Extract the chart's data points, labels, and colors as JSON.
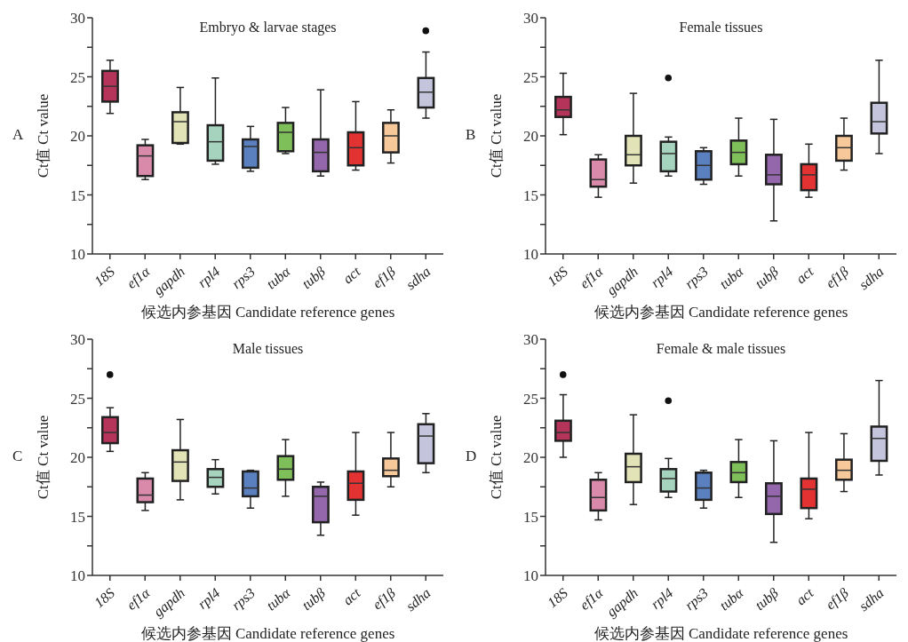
{
  "chart_data": [
    {
      "type": "box",
      "title": "Embryo & larvae stages",
      "xlabel": "候选内参基因 Candidate reference genes",
      "ylabel": "Ct值 Ct value",
      "annotations": [
        "A"
      ],
      "categories": [
        "18S",
        "ef1α",
        "gapdh",
        "rpl4",
        "rps3",
        "tubα",
        "tubβ",
        "act",
        "ef1β",
        "sdha"
      ],
      "colors": [
        "#b5355a",
        "#d98aaa",
        "#e2e4b8",
        "#a5d3bd",
        "#5a80c0",
        "#7fbf5a",
        "#9466ab",
        "#e23232",
        "#f7c99a",
        "#c4c4dc"
      ],
      "ylim": [
        10,
        30
      ],
      "yticks": [
        10,
        {
          "value": 12.5,
          "label": null
        },
        15,
        {
          "value": 17.5,
          "label": null
        },
        20,
        {
          "value": 22.5,
          "label": null
        },
        25,
        {
          "value": 27.5,
          "label": null
        },
        30
      ],
      "boxes": [
        {
          "low": 21.9,
          "q1": 22.9,
          "median": 24.2,
          "q3": 25.5,
          "high": 26.4
        },
        {
          "low": 16.3,
          "q1": 16.6,
          "median": 18.3,
          "q3": 19.2,
          "high": 19.7
        },
        {
          "low": 19.3,
          "q1": 19.4,
          "median": 21.2,
          "q3": 22.0,
          "high": 24.1
        },
        {
          "low": 17.6,
          "q1": 17.9,
          "median": 19.5,
          "q3": 20.9,
          "high": 24.9
        },
        {
          "low": 17.0,
          "q1": 17.3,
          "median": 19.1,
          "q3": 19.7,
          "high": 20.8
        },
        {
          "low": 18.5,
          "q1": 18.7,
          "median": 20.3,
          "q3": 21.1,
          "high": 22.4
        },
        {
          "low": 16.6,
          "q1": 17.0,
          "median": 18.6,
          "q3": 19.7,
          "high": 23.9
        },
        {
          "low": 17.1,
          "q1": 17.5,
          "median": 19.0,
          "q3": 20.3,
          "high": 22.9
        },
        {
          "low": 17.7,
          "q1": 18.6,
          "median": 20.0,
          "q3": 21.1,
          "high": 22.2
        },
        {
          "low": 21.5,
          "q1": 22.4,
          "median": 23.7,
          "q3": 24.9,
          "high": 27.1,
          "outliers": [
            28.9
          ]
        }
      ]
    },
    {
      "type": "box",
      "title": "Female tissues",
      "xlabel": "候选内参基因 Candidate reference genes",
      "ylabel": "Ct值 Ct value",
      "annotations": [
        "B"
      ],
      "categories": [
        "18S",
        "ef1α",
        "gapdh",
        "rpl4",
        "rps3",
        "tubα",
        "tubβ",
        "act",
        "ef1β",
        "sdha"
      ],
      "colors": [
        "#b5355a",
        "#d98aaa",
        "#e2e4b8",
        "#a5d3bd",
        "#5a80c0",
        "#7fbf5a",
        "#9466ab",
        "#e23232",
        "#f7c99a",
        "#c4c4dc"
      ],
      "ylim": [
        10,
        30
      ],
      "yticks": [
        10,
        {
          "value": 12.5,
          "label": null
        },
        15,
        {
          "value": 17.5,
          "label": null
        },
        20,
        {
          "value": 22.5,
          "label": null
        },
        25,
        {
          "value": 27.5,
          "label": null
        },
        30
      ],
      "boxes": [
        {
          "low": 20.1,
          "q1": 21.6,
          "median": 22.2,
          "q3": 23.3,
          "high": 25.3
        },
        {
          "low": 14.8,
          "q1": 15.7,
          "median": 16.3,
          "q3": 18.0,
          "high": 18.4
        },
        {
          "low": 16.0,
          "q1": 17.5,
          "median": 18.4,
          "q3": 20.0,
          "high": 23.6
        },
        {
          "low": 16.6,
          "q1": 17.0,
          "median": 18.5,
          "q3": 19.5,
          "high": 19.9,
          "outliers": [
            24.9
          ]
        },
        {
          "low": 15.9,
          "q1": 16.3,
          "median": 17.5,
          "q3": 18.7,
          "high": 19.0
        },
        {
          "low": 16.6,
          "q1": 17.6,
          "median": 18.6,
          "q3": 19.6,
          "high": 21.5
        },
        {
          "low": 12.8,
          "q1": 15.9,
          "median": 16.7,
          "q3": 18.4,
          "high": 21.4
        },
        {
          "low": 14.8,
          "q1": 15.4,
          "median": 16.7,
          "q3": 17.6,
          "high": 19.3
        },
        {
          "low": 17.1,
          "q1": 17.9,
          "median": 19.0,
          "q3": 20.0,
          "high": 21.5
        },
        {
          "low": 18.5,
          "q1": 20.2,
          "median": 21.2,
          "q3": 22.8,
          "high": 26.4
        }
      ]
    },
    {
      "type": "box",
      "title": "Male tissues",
      "xlabel": "候选内参基因 Candidate reference genes",
      "ylabel": "Ct值 Ct value",
      "annotations": [
        "C"
      ],
      "categories": [
        "18S",
        "ef1α",
        "gapdh",
        "rpl4",
        "rps3",
        "tubα",
        "tubβ",
        "act",
        "ef1β",
        "sdha"
      ],
      "colors": [
        "#b5355a",
        "#d98aaa",
        "#e2e4b8",
        "#a5d3bd",
        "#5a80c0",
        "#7fbf5a",
        "#9466ab",
        "#e23232",
        "#f7c99a",
        "#c4c4dc"
      ],
      "ylim": [
        10,
        30
      ],
      "yticks": [
        10,
        {
          "value": 12.5,
          "label": null
        },
        15,
        {
          "value": 17.5,
          "label": null
        },
        20,
        {
          "value": 22.5,
          "label": null
        },
        25,
        {
          "value": 27.5,
          "label": null
        },
        30
      ],
      "boxes": [
        {
          "low": 20.5,
          "q1": 21.2,
          "median": 22.1,
          "q3": 23.4,
          "high": 24.2,
          "outliers": [
            27.0
          ]
        },
        {
          "low": 15.5,
          "q1": 16.2,
          "median": 16.8,
          "q3": 18.2,
          "high": 18.7
        },
        {
          "low": 16.4,
          "q1": 18.0,
          "median": 19.6,
          "q3": 20.6,
          "high": 23.2
        },
        {
          "low": 16.9,
          "q1": 17.5,
          "median": 18.3,
          "q3": 19.0,
          "high": 19.8
        },
        {
          "low": 15.7,
          "q1": 16.7,
          "median": 17.4,
          "q3": 18.8,
          "high": 18.9
        },
        {
          "low": 16.7,
          "q1": 18.1,
          "median": 19.0,
          "q3": 20.1,
          "high": 21.5
        },
        {
          "low": 13.4,
          "q1": 14.5,
          "median": 16.7,
          "q3": 17.5,
          "high": 17.9
        },
        {
          "low": 15.1,
          "q1": 16.4,
          "median": 17.8,
          "q3": 18.8,
          "high": 22.1
        },
        {
          "low": 17.5,
          "q1": 18.4,
          "median": 18.9,
          "q3": 19.9,
          "high": 22.1
        },
        {
          "low": 18.7,
          "q1": 19.5,
          "median": 21.8,
          "q3": 22.8,
          "high": 23.7
        }
      ]
    },
    {
      "type": "box",
      "title": "Female & male tissues",
      "xlabel": "候选内参基因 Candidate reference genes",
      "ylabel": "Ct值 Ct value",
      "annotations": [
        "D"
      ],
      "categories": [
        "18S",
        "ef1α",
        "gapdh",
        "rpl4",
        "rps3",
        "tubα",
        "tubβ",
        "act",
        "ef1β",
        "sdha"
      ],
      "colors": [
        "#b5355a",
        "#d98aaa",
        "#e2e4b8",
        "#a5d3bd",
        "#5a80c0",
        "#7fbf5a",
        "#9466ab",
        "#e23232",
        "#f7c99a",
        "#c4c4dc"
      ],
      "ylim": [
        10,
        30
      ],
      "yticks": [
        10,
        {
          "value": 12.5,
          "label": null
        },
        15,
        {
          "value": 17.5,
          "label": null
        },
        20,
        {
          "value": 22.5,
          "label": null
        },
        25,
        {
          "value": 27.5,
          "label": null
        },
        30
      ],
      "boxes": [
        {
          "low": 20.0,
          "q1": 21.4,
          "median": 22.1,
          "q3": 23.1,
          "high": 25.3,
          "outliers": [
            27.0
          ]
        },
        {
          "low": 14.7,
          "q1": 15.5,
          "median": 16.6,
          "q3": 18.1,
          "high": 18.7
        },
        {
          "low": 16.0,
          "q1": 17.9,
          "median": 19.2,
          "q3": 20.3,
          "high": 23.6
        },
        {
          "low": 16.6,
          "q1": 17.1,
          "median": 18.2,
          "q3": 19.0,
          "high": 19.9,
          "outliers": [
            24.8
          ]
        },
        {
          "low": 15.7,
          "q1": 16.4,
          "median": 17.4,
          "q3": 18.7,
          "high": 18.9
        },
        {
          "low": 16.6,
          "q1": 17.9,
          "median": 18.7,
          "q3": 19.6,
          "high": 21.5
        },
        {
          "low": 12.8,
          "q1": 15.2,
          "median": 16.7,
          "q3": 17.8,
          "high": 21.4
        },
        {
          "low": 14.8,
          "q1": 15.7,
          "median": 17.3,
          "q3": 18.2,
          "high": 22.1
        },
        {
          "low": 17.1,
          "q1": 18.1,
          "median": 18.9,
          "q3": 19.8,
          "high": 22.0
        },
        {
          "low": 18.5,
          "q1": 19.7,
          "median": 21.6,
          "q3": 22.6,
          "high": 26.5
        }
      ]
    }
  ]
}
